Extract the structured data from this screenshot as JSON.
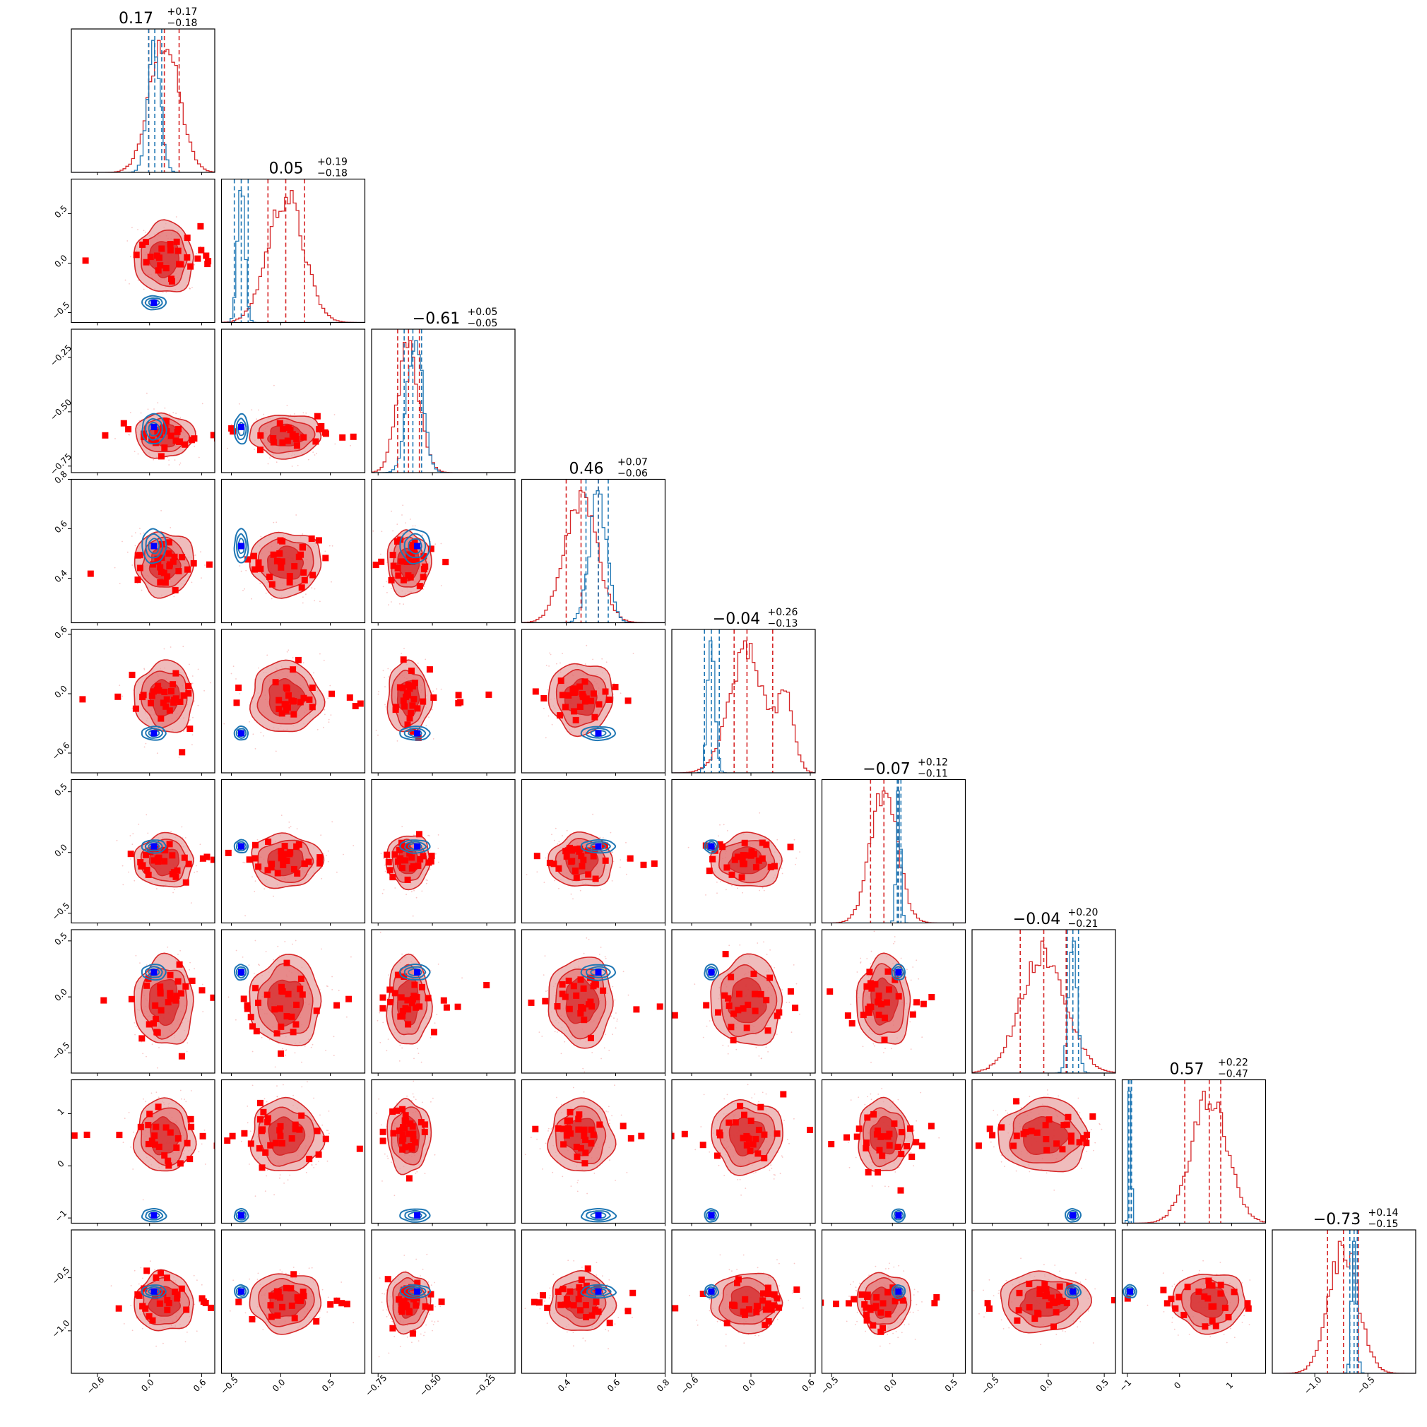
{
  "figure": {
    "type": "corner_plot",
    "n_params": 9
  },
  "colors": {
    "red": "#d62728",
    "red_fill": "#e8a0a0",
    "red_fill_dark": "#d62728",
    "blue": "#1f77b4",
    "point_red": "#ff0000",
    "point_blue": "#0000ff"
  },
  "chart_data": {
    "type": "corner",
    "titles": [
      {
        "val": "0.17",
        "plus": "+0.17",
        "minus": "−0.18"
      },
      {
        "val": "0.05",
        "plus": "+0.19",
        "minus": "−0.18"
      },
      {
        "val": "−0.61",
        "plus": "+0.05",
        "minus": "−0.05"
      },
      {
        "val": "0.46",
        "plus": "+0.07",
        "minus": "−0.06"
      },
      {
        "val": "−0.04",
        "plus": "+0.26",
        "minus": "−0.13"
      },
      {
        "val": "−0.07",
        "plus": "+0.12",
        "minus": "−0.11"
      },
      {
        "val": "−0.04",
        "plus": "+0.20",
        "minus": "−0.21"
      },
      {
        "val": "0.57",
        "plus": "+0.22",
        "minus": "−0.47"
      },
      {
        "val": "−0.73",
        "plus": "+0.14",
        "minus": "−0.15"
      }
    ],
    "ranges": [
      [
        -0.9,
        0.75
      ],
      [
        -0.6,
        0.85
      ],
      [
        -0.78,
        -0.12
      ],
      [
        0.22,
        0.8
      ],
      [
        -0.8,
        0.65
      ],
      [
        -0.58,
        0.6
      ],
      [
        -0.68,
        0.6
      ],
      [
        -1.1,
        1.65
      ],
      [
        -1.4,
        -0.05
      ]
    ],
    "ticks": [
      {
        "vals": [
          -0.6,
          0.0,
          0.6
        ],
        "labels": [
          "−0.6",
          "0.0",
          "0.6"
        ]
      },
      {
        "vals": [
          -0.5,
          0.0,
          0.5
        ],
        "labels": [
          "−0.5",
          "0.0",
          "0.5"
        ]
      },
      {
        "vals": [
          -0.75,
          -0.5,
          -0.25
        ],
        "labels": [
          "−0.75",
          "−0.50",
          "−0.25"
        ]
      },
      {
        "vals": [
          0.4,
          0.6,
          0.8
        ],
        "labels": [
          "0.4",
          "0.6",
          "0.8"
        ]
      },
      {
        "vals": [
          -0.6,
          0.0,
          0.6
        ],
        "labels": [
          "−0.6",
          "0.0",
          "0.6"
        ]
      },
      {
        "vals": [
          -0.5,
          0.0,
          0.5
        ],
        "labels": [
          "−0.5",
          "0.0",
          "0.5"
        ]
      },
      {
        "vals": [
          -0.5,
          0.0,
          0.5
        ],
        "labels": [
          "−0.5",
          "0.0",
          "0.5"
        ]
      },
      {
        "vals": [
          -1,
          0,
          1
        ],
        "labels": [
          "−1",
          "0",
          "1"
        ]
      },
      {
        "vals": [
          -1.0,
          -0.5
        ],
        "labels": [
          "−1.0",
          "−0.5"
        ]
      }
    ],
    "bottom_ticks": [
      {
        "vals": [
          -0.6,
          0.0,
          0.6
        ],
        "labels": [
          "−0.6",
          "0.0",
          "0.6"
        ]
      },
      {
        "vals": [
          -0.5,
          0.0,
          0.5
        ],
        "labels": [
          "−0.5",
          "0.0",
          "0.5"
        ]
      },
      {
        "vals": [
          -0.75,
          -0.5,
          -0.25
        ],
        "labels": [
          "−0.75",
          "−0.50",
          "−0.25"
        ]
      },
      {
        "vals": [
          0.4,
          0.6,
          0.8
        ],
        "labels": [
          "0.4",
          "0.6",
          "0.8"
        ]
      },
      {
        "vals": [
          -0.6,
          0.0,
          0.6
        ],
        "labels": [
          "−0.6",
          "0.0",
          "0.6"
        ]
      },
      {
        "vals": [
          -0.5,
          0.0,
          0.5
        ],
        "labels": [
          "−0.5",
          "0.0",
          "0.5"
        ]
      },
      {
        "vals": [
          -0.5,
          0.0,
          0.5
        ],
        "labels": [
          "−0.5",
          "0.0",
          "0.5"
        ]
      },
      {
        "vals": [
          -1,
          0,
          1
        ],
        "labels": [
          "−1",
          "0",
          "1"
        ]
      },
      {
        "vals": [
          -1.0,
          -0.5
        ],
        "labels": [
          "−1.0",
          "−0.5"
        ]
      }
    ],
    "red_posterior": {
      "center": [
        0.17,
        0.05,
        -0.61,
        0.46,
        -0.04,
        -0.07,
        -0.04,
        0.57,
        -0.73
      ],
      "sigma": [
        0.17,
        0.18,
        0.05,
        0.065,
        0.18,
        0.11,
        0.2,
        0.35,
        0.14
      ],
      "quantiles": [
        [
          -0.01,
          0.17,
          0.34
        ],
        [
          -0.13,
          0.05,
          0.24
        ],
        [
          -0.66,
          -0.61,
          -0.56
        ],
        [
          0.4,
          0.46,
          0.53
        ],
        [
          -0.17,
          -0.04,
          0.22
        ],
        [
          -0.18,
          -0.07,
          0.05
        ],
        [
          -0.25,
          -0.04,
          0.16
        ],
        [
          0.1,
          0.57,
          0.79
        ],
        [
          -0.88,
          -0.73,
          -0.59
        ]
      ]
    },
    "blue_posterior": {
      "center": [
        0.05,
        -0.4,
        -0.58,
        0.53,
        -0.4,
        0.05,
        0.22,
        -0.95,
        -0.63
      ],
      "sigma": [
        0.06,
        0.03,
        0.03,
        0.03,
        0.03,
        0.015,
        0.03,
        0.02,
        0.02
      ],
      "quantiles": [
        [
          -0.01,
          0.06,
          0.14
        ],
        [
          -0.47,
          -0.4,
          -0.33
        ],
        [
          -0.63,
          -0.59,
          -0.55
        ],
        [
          0.48,
          0.53,
          0.57
        ],
        [
          -0.47,
          -0.4,
          -0.32
        ],
        [
          0.04,
          0.05,
          0.07
        ],
        [
          0.17,
          0.22,
          0.27
        ],
        [
          -0.98,
          -0.95,
          -0.92
        ],
        [
          -0.67,
          -0.63,
          -0.6
        ]
      ]
    },
    "truth_marker": [
      0.05,
      -0.4,
      -0.57,
      0.53,
      -0.4,
      0.05,
      0.22,
      -0.95,
      -0.63
    ],
    "scatter_points_per_panel": 30
  }
}
